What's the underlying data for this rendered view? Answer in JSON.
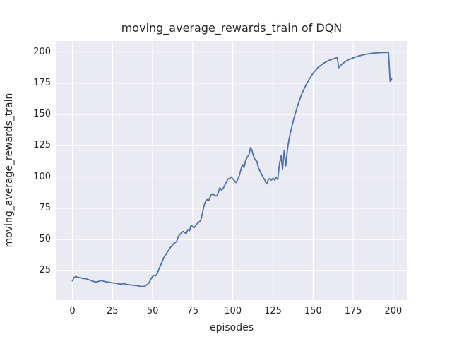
{
  "chart_data": {
    "type": "line",
    "title": "moving_average_rewards_train of DQN",
    "xlabel": "episodes",
    "ylabel": "moving_average_rewards_train",
    "series": [
      {
        "name": "moving_average_rewards_train",
        "x_start": 0,
        "x_step": 1,
        "values": [
          17.0,
          19.5,
          20.5,
          20.0,
          19.7,
          19.4,
          19.0,
          18.7,
          18.9,
          18.4,
          18.0,
          17.5,
          16.9,
          16.5,
          16.2,
          16.0,
          16.3,
          16.9,
          17.2,
          16.8,
          16.5,
          16.2,
          16.0,
          15.8,
          15.6,
          15.4,
          15.2,
          15.0,
          14.8,
          14.6,
          14.4,
          14.5,
          14.8,
          14.4,
          14.1,
          13.9,
          13.7,
          13.6,
          13.4,
          13.3,
          13.2,
          13.0,
          12.7,
          12.4,
          12.5,
          12.6,
          13.4,
          14.4,
          16.0,
          18.5,
          20.5,
          21.5,
          21.0,
          23.0,
          26.5,
          29.5,
          32.5,
          35.5,
          37.5,
          39.5,
          41.5,
          43.5,
          45.0,
          46.5,
          47.5,
          48.5,
          52.5,
          54.0,
          55.5,
          56.5,
          55.5,
          54.8,
          58.0,
          57.0,
          61.5,
          60.0,
          59.5,
          61.5,
          63.0,
          64.0,
          65.5,
          70.5,
          77.0,
          80.5,
          82.0,
          81.0,
          84.5,
          86.5,
          86.0,
          85.0,
          84.8,
          88.0,
          91.5,
          89.5,
          91.0,
          93.5,
          96.0,
          98.5,
          99.0,
          100.0,
          98.5,
          97.0,
          95.5,
          98.0,
          101.0,
          106.0,
          110.0,
          107.5,
          113.5,
          116.0,
          117.5,
          123.5,
          121.0,
          116.0,
          113.5,
          112.5,
          107.0,
          104.5,
          102.0,
          99.5,
          97.5,
          94.5,
          97.5,
          99.0,
          97.5,
          99.0,
          97.5,
          99.5,
          98.0,
          110.0,
          117.0,
          106.0,
          121.0,
          109.0,
          122.0,
          130.0,
          136.0,
          141.5,
          146.5,
          151.0,
          155.5,
          159.5,
          163.0,
          166.5,
          169.5,
          172.0,
          174.5,
          177.0,
          179.0,
          181.0,
          183.0,
          184.5,
          186.0,
          187.5,
          188.5,
          189.5,
          190.5,
          191.3,
          192.0,
          192.7,
          193.3,
          193.8,
          194.3,
          194.7,
          195.1,
          195.5,
          187.5,
          189.0,
          190.3,
          191.3,
          192.2,
          193.0,
          193.7,
          194.3,
          194.8,
          195.3,
          195.8,
          196.2,
          196.6,
          197.0,
          197.3,
          197.6,
          197.9,
          198.2,
          198.4,
          198.6,
          198.8,
          199.0,
          199.1,
          199.2,
          199.3,
          199.4,
          199.5,
          199.5,
          199.6,
          199.6,
          199.7,
          199.7,
          176.5,
          178.5
        ]
      }
    ],
    "xlim": [
      -9.9,
      208.4
    ],
    "ylim": [
      1.5,
      208.8
    ],
    "xticks": [
      0,
      25,
      50,
      75,
      100,
      125,
      150,
      175,
      200
    ],
    "yticks": [
      25,
      50,
      75,
      100,
      125,
      150,
      175,
      200
    ],
    "grid": true,
    "legend": "none",
    "style": {
      "line_color": "#4c72b0",
      "line_width": 1.8,
      "plot_bg": "#eaeaf2",
      "grid_color": "#ffffff",
      "text_color": "#262626",
      "figure_bg": "#ffffff"
    }
  }
}
